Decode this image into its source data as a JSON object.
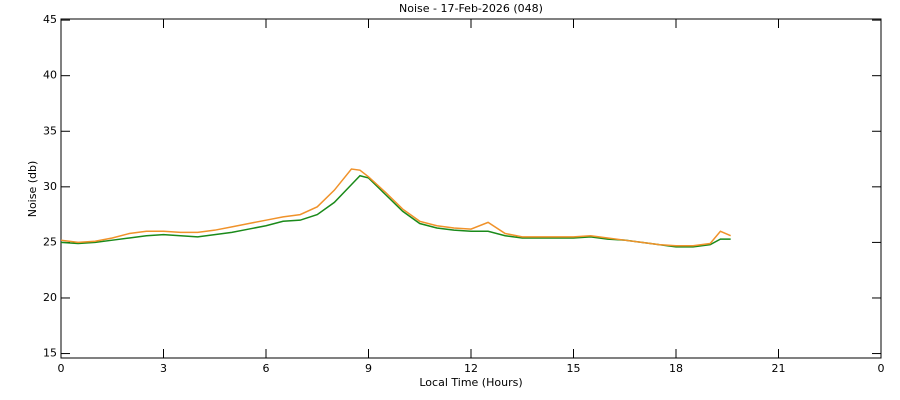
{
  "chart_data": {
    "type": "line",
    "title": "Noise - 17-Feb-2026 (048)",
    "x_label": "Local Time (Hours)",
    "y_label": "Noise (db)",
    "x": [
      0,
      0.5,
      1,
      1.5,
      2,
      2.5,
      3,
      3.5,
      4,
      4.5,
      5,
      5.5,
      6,
      6.5,
      7,
      7.5,
      8,
      8.5,
      8.75,
      9,
      9.5,
      10,
      10.5,
      11,
      11.5,
      12,
      12.5,
      13,
      13.5,
      14,
      14.5,
      15,
      15.5,
      16,
      16.5,
      17,
      17.5,
      18,
      18.5,
      19,
      19.3,
      19.6
    ],
    "series": [
      {
        "color": "#1a8a1a",
        "values": [
          25.0,
          24.9,
          25.0,
          25.2,
          25.4,
          25.6,
          25.7,
          25.6,
          25.5,
          25.7,
          25.9,
          26.2,
          26.5,
          26.9,
          27.0,
          27.5,
          28.6,
          30.2,
          31.0,
          30.8,
          29.3,
          27.8,
          26.7,
          26.3,
          26.1,
          26.0,
          26.0,
          25.6,
          25.4,
          25.4,
          25.4,
          25.4,
          25.5,
          25.3,
          25.2,
          25.0,
          24.8,
          24.6,
          24.6,
          24.8,
          25.3,
          25.3
        ]
      },
      {
        "color": "#f0922a",
        "values": [
          25.2,
          25.0,
          25.1,
          25.4,
          25.8,
          26.0,
          26.0,
          25.9,
          25.9,
          26.1,
          26.4,
          26.7,
          27.0,
          27.3,
          27.5,
          28.2,
          29.7,
          31.6,
          31.5,
          30.9,
          29.5,
          28.0,
          26.9,
          26.5,
          26.3,
          26.2,
          26.8,
          25.8,
          25.5,
          25.5,
          25.5,
          25.5,
          25.6,
          25.4,
          25.2,
          25.0,
          24.8,
          24.7,
          24.7,
          24.9,
          26.0,
          25.6
        ]
      }
    ],
    "xlim": [
      0,
      24
    ],
    "xticks": [
      0,
      3,
      6,
      9,
      12,
      15,
      18,
      21,
      {
        "value": 24,
        "label": "0"
      }
    ],
    "ylim": [
      14.6,
      45.1
    ],
    "yticks": [
      15,
      20,
      25,
      30,
      35,
      40,
      45
    ],
    "grid": false
  }
}
